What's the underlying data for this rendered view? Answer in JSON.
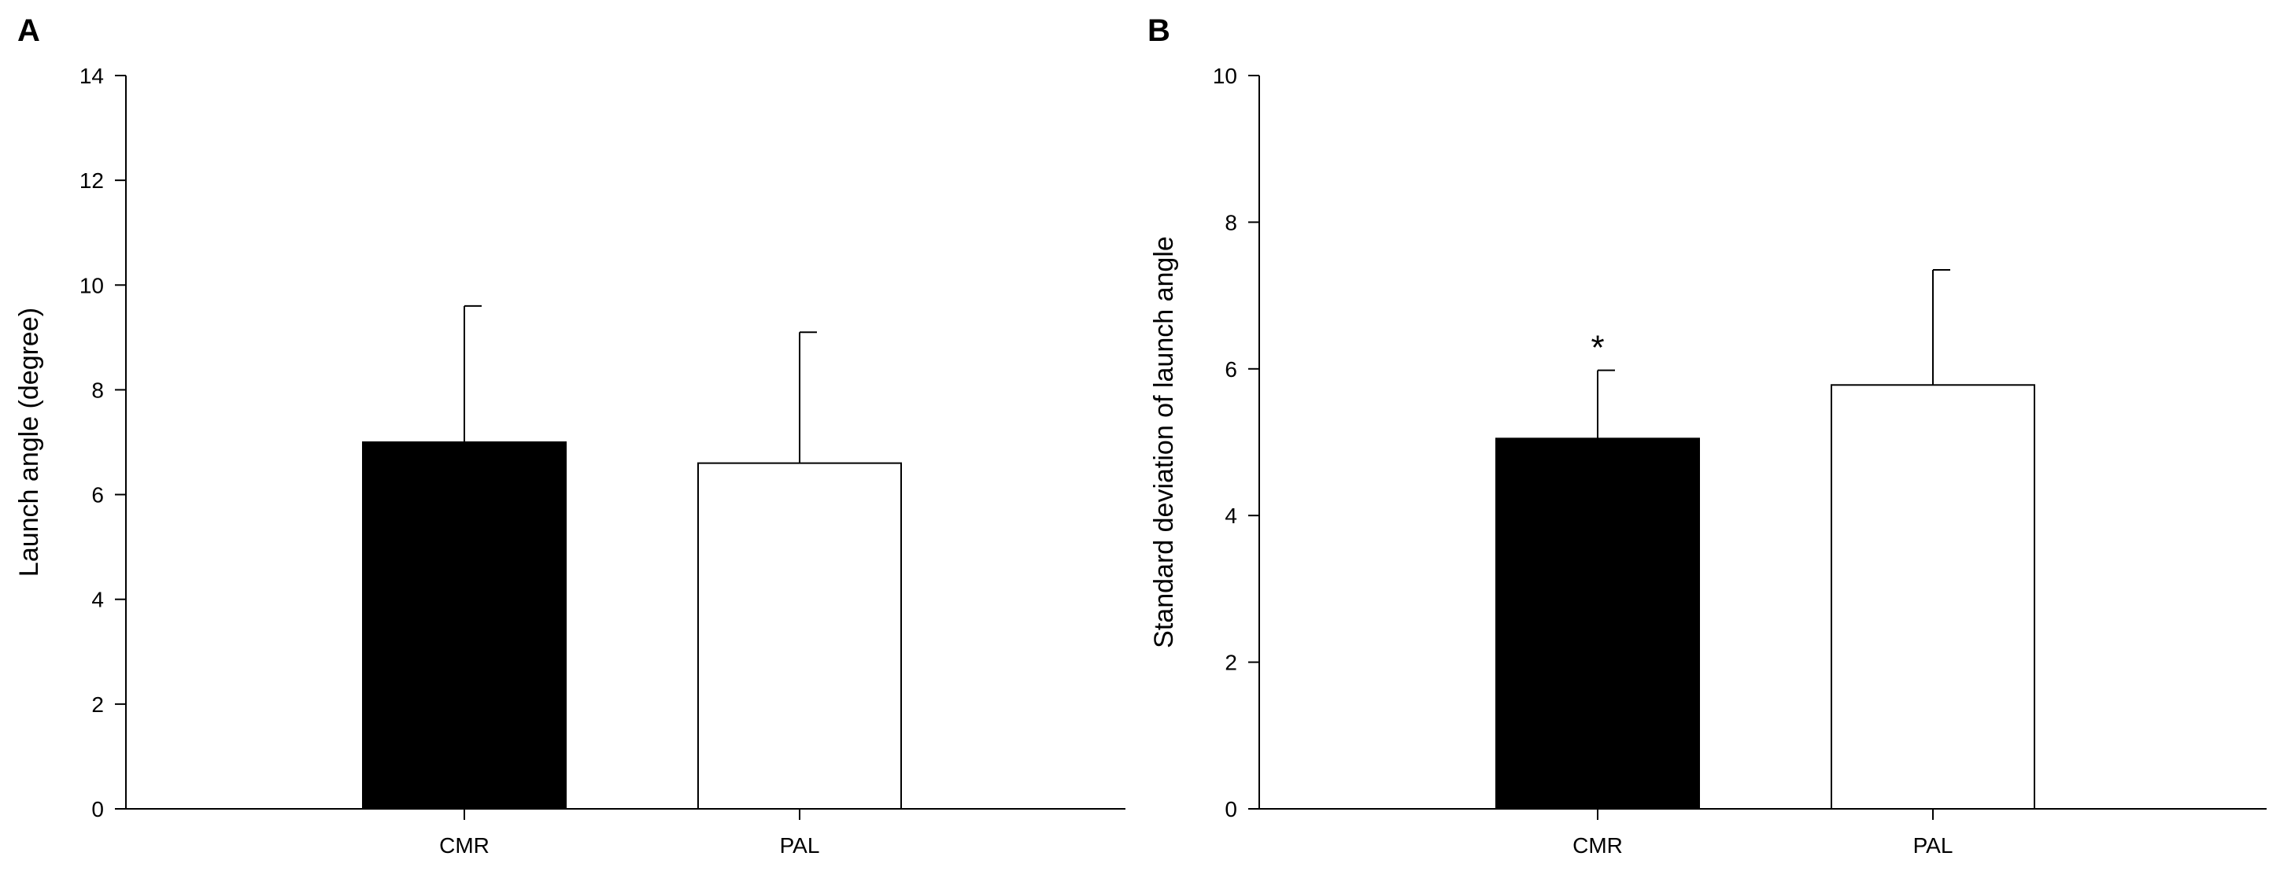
{
  "chart_data": [
    {
      "type": "bar",
      "panel_label": "A",
      "categories": [
        "CMR",
        "PAL"
      ],
      "values": [
        7.0,
        6.6
      ],
      "errors": [
        2.6,
        2.5
      ],
      "bar_colors": [
        "#000000",
        "#ffffff"
      ],
      "ylabel": "Launch angle (degree)",
      "xlabel": "",
      "ylim": [
        0,
        14
      ],
      "yticks": [
        0,
        2,
        4,
        6,
        8,
        10,
        12,
        14
      ],
      "annotations": [
        "",
        ""
      ],
      "grid": false
    },
    {
      "type": "bar",
      "panel_label": "B",
      "categories": [
        "CMR",
        "PAL"
      ],
      "values": [
        5.05,
        5.78
      ],
      "errors": [
        0.93,
        1.57
      ],
      "bar_colors": [
        "#000000",
        "#ffffff"
      ],
      "ylabel": "Standard deviation of launch angle",
      "xlabel": "",
      "ylim": [
        0,
        10
      ],
      "yticks": [
        0,
        2,
        4,
        6,
        8,
        10
      ],
      "annotations": [
        "*",
        ""
      ],
      "grid": false
    }
  ]
}
